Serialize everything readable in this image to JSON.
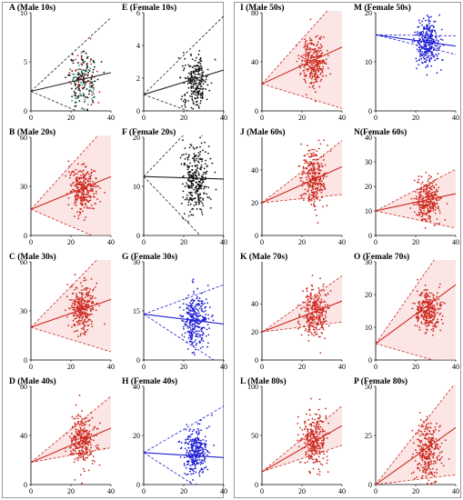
{
  "chart_data": [
    {
      "id": "A",
      "title": "A (Male 10s)",
      "type": "scatter",
      "xlim": [
        0,
        40
      ],
      "ylim": [
        0,
        10
      ],
      "xticks": [
        0,
        20,
        40
      ],
      "yticks": [
        0,
        5,
        10
      ],
      "color": "#222222",
      "fill": false,
      "dots": "mixed",
      "upper": [
        2,
        9.5
      ],
      "fit": [
        2,
        3.9
      ],
      "lower": [
        2,
        -1.5
      ],
      "center": [
        26,
        3.1
      ],
      "spread": [
        3.2,
        1.4
      ],
      "n": 240
    },
    {
      "id": "E",
      "title": "E (Female 10s)",
      "type": "scatter",
      "xlim": [
        0,
        40
      ],
      "ylim": [
        0,
        6
      ],
      "xticks": [
        0,
        20,
        40
      ],
      "yticks": [
        0,
        2,
        4,
        6
      ],
      "color": "#222222",
      "fill": false,
      "dots": "black",
      "upper": [
        1,
        5.8
      ],
      "fit": [
        1,
        2.5
      ],
      "lower": [
        1,
        -0.8
      ],
      "center": [
        26,
        1.8
      ],
      "spread": [
        3.2,
        0.8
      ],
      "n": 240
    },
    {
      "id": "I",
      "title": "I (Male 50s)",
      "type": "scatter",
      "xlim": [
        0,
        40
      ],
      "ylim": [
        0,
        80
      ],
      "xticks": [
        0,
        20,
        40
      ],
      "yticks": [
        0,
        40,
        80
      ],
      "color": "#cc2a20",
      "fill": true,
      "dots": "red",
      "upper": [
        22,
        95
      ],
      "fit": [
        22,
        52
      ],
      "lower": [
        22,
        2
      ],
      "center": [
        26,
        40
      ],
      "spread": [
        3.2,
        10
      ],
      "n": 300
    },
    {
      "id": "M",
      "title": "M (Female 50s)",
      "type": "scatter",
      "xlim": [
        0,
        40
      ],
      "ylim": [
        0,
        20
      ],
      "xticks": [
        0,
        20,
        40
      ],
      "yticks": [
        0,
        10,
        20
      ],
      "color": "#1f1fd6",
      "fill": false,
      "dots": "blue",
      "upper": [
        15.5,
        15.3
      ],
      "fit": [
        15.5,
        13.2
      ],
      "lower": [
        15.5,
        11.5
      ],
      "center": [
        26,
        14
      ],
      "spread": [
        3.2,
        2.6
      ],
      "n": 300
    },
    {
      "id": "B",
      "title": "B (Male 20s)",
      "type": "scatter",
      "xlim": [
        0,
        40
      ],
      "ylim": [
        0,
        60
      ],
      "xticks": [
        0,
        20,
        40
      ],
      "yticks": [
        0,
        30,
        60
      ],
      "color": "#cc2a20",
      "fill": true,
      "dots": "red",
      "upper": [
        16,
        70
      ],
      "fit": [
        16,
        36
      ],
      "lower": [
        16,
        -5
      ],
      "center": [
        26,
        29
      ],
      "spread": [
        3.2,
        7
      ],
      "n": 300
    },
    {
      "id": "F",
      "title": "F (Female 20s)",
      "type": "scatter",
      "xlim": [
        0,
        40
      ],
      "ylim": [
        0,
        20
      ],
      "xticks": [
        0,
        20,
        40
      ],
      "yticks": [
        0,
        10,
        20
      ],
      "color": "#222222",
      "fill": false,
      "dots": "black",
      "upper": [
        12,
        29
      ],
      "fit": [
        12,
        11.5
      ],
      "lower": [
        12,
        -5
      ],
      "center": [
        26,
        11.5
      ],
      "spread": [
        3.2,
        3.8
      ],
      "n": 300
    },
    {
      "id": "J",
      "title": "J (Male 60s)",
      "type": "scatter",
      "xlim": [
        0,
        40
      ],
      "ylim": [
        0,
        60
      ],
      "xticks": [
        0,
        20,
        40
      ],
      "yticks": [
        0,
        20,
        40
      ],
      "color": "#cc2a20",
      "fill": true,
      "dots": "red",
      "upper": [
        20,
        58
      ],
      "fit": [
        20,
        42
      ],
      "lower": [
        20,
        25
      ],
      "center": [
        26,
        35
      ],
      "spread": [
        3.2,
        9
      ],
      "n": 300
    },
    {
      "id": "N",
      "title": "N(Female 60s)",
      "type": "scatter",
      "xlim": [
        0,
        40
      ],
      "ylim": [
        0,
        40
      ],
      "xticks": [
        0,
        20,
        40
      ],
      "yticks": [
        0,
        10,
        20,
        30,
        40
      ],
      "color": "#cc2a20",
      "fill": true,
      "dots": "red",
      "upper": [
        10,
        27
      ],
      "fit": [
        10,
        17
      ],
      "lower": [
        10,
        3
      ],
      "center": [
        26,
        14
      ],
      "spread": [
        3.2,
        4.5
      ],
      "n": 300
    },
    {
      "id": "C",
      "title": "C (Male 30s)",
      "type": "scatter",
      "xlim": [
        0,
        40
      ],
      "ylim": [
        0,
        60
      ],
      "xticks": [
        0,
        20,
        40
      ],
      "yticks": [
        0,
        30,
        60
      ],
      "color": "#cc2a20",
      "fill": true,
      "dots": "red",
      "upper": [
        20,
        70
      ],
      "fit": [
        20,
        37
      ],
      "lower": [
        20,
        5
      ],
      "center": [
        26,
        32
      ],
      "spread": [
        3.2,
        7
      ],
      "n": 300
    },
    {
      "id": "G",
      "title": "G (Female 30s)",
      "type": "scatter",
      "xlim": [
        0,
        40
      ],
      "ylim": [
        0,
        30
      ],
      "xticks": [
        0,
        20,
        40
      ],
      "yticks": [
        0,
        15,
        30
      ],
      "color": "#1f1fd6",
      "fill": false,
      "dots": "blue",
      "upper": [
        14,
        23
      ],
      "fit": [
        14,
        11
      ],
      "lower": [
        14,
        -2
      ],
      "center": [
        26,
        12
      ],
      "spread": [
        3.2,
        4
      ],
      "n": 300
    },
    {
      "id": "K",
      "title": "K (Male 70s)",
      "type": "scatter",
      "xlim": [
        0,
        40
      ],
      "ylim": [
        0,
        70
      ],
      "xticks": [
        0,
        20,
        40
      ],
      "yticks": [
        0,
        20,
        40
      ],
      "color": "#cc2a20",
      "fill": true,
      "dots": "red",
      "upper": [
        20,
        60
      ],
      "fit": [
        20,
        42
      ],
      "lower": [
        20,
        27
      ],
      "center": [
        26,
        34
      ],
      "spread": [
        3.2,
        9
      ],
      "n": 300
    },
    {
      "id": "O",
      "title": "O (Female 70s)",
      "type": "scatter",
      "xlim": [
        0,
        40
      ],
      "ylim": [
        0,
        30
      ],
      "xticks": [
        0,
        20,
        40
      ],
      "yticks": [
        0,
        10,
        20,
        30
      ],
      "color": "#cc2a20",
      "fill": true,
      "dots": "red",
      "upper": [
        5,
        40
      ],
      "fit": [
        5,
        23
      ],
      "lower": [
        5,
        -2
      ],
      "center": [
        26,
        15
      ],
      "spread": [
        3.2,
        3.2
      ],
      "n": 300
    },
    {
      "id": "D",
      "title": "D (Male 40s)",
      "type": "scatter",
      "xlim": [
        0,
        40
      ],
      "ylim": [
        0,
        80
      ],
      "xticks": [
        0,
        20,
        40
      ],
      "yticks": [
        0,
        40,
        80
      ],
      "color": "#cc2a20",
      "fill": true,
      "dots": "red",
      "upper": [
        18,
        72
      ],
      "fit": [
        18,
        46
      ],
      "lower": [
        18,
        30
      ],
      "center": [
        26,
        36
      ],
      "spread": [
        3.2,
        10
      ],
      "n": 300
    },
    {
      "id": "H",
      "title": "H (Female 40s)",
      "type": "scatter",
      "xlim": [
        0,
        40
      ],
      "ylim": [
        0,
        40
      ],
      "xticks": [
        0,
        20,
        40
      ],
      "yticks": [
        0,
        20,
        40
      ],
      "color": "#1f1fd6",
      "fill": false,
      "dots": "blue",
      "upper": [
        13,
        32
      ],
      "fit": [
        13,
        11
      ],
      "lower": [
        13,
        -8
      ],
      "center": [
        26,
        13
      ],
      "spread": [
        3.2,
        5
      ],
      "n": 300
    },
    {
      "id": "L",
      "title": "L (Male 80s)",
      "type": "scatter",
      "xlim": [
        0,
        40
      ],
      "ylim": [
        0,
        100
      ],
      "xticks": [
        0,
        20,
        40
      ],
      "yticks": [
        0,
        50,
        100
      ],
      "color": "#cc2a20",
      "fill": true,
      "dots": "red",
      "upper": [
        13,
        80
      ],
      "fit": [
        13,
        60
      ],
      "lower": [
        13,
        40
      ],
      "center": [
        26,
        44
      ],
      "spread": [
        3.2,
        14
      ],
      "n": 300
    },
    {
      "id": "P",
      "title": "P (Female 80s)",
      "type": "scatter",
      "xlim": [
        0,
        40
      ],
      "ylim": [
        0,
        50
      ],
      "xticks": [
        0,
        20,
        40
      ],
      "yticks": [
        0,
        25,
        50
      ],
      "color": "#cc2a20",
      "fill": true,
      "dots": "red",
      "upper": [
        0,
        52
      ],
      "fit": [
        0,
        29
      ],
      "lower": [
        0,
        5
      ],
      "center": [
        26,
        17
      ],
      "spread": [
        3.2,
        7
      ],
      "n": 300
    }
  ]
}
